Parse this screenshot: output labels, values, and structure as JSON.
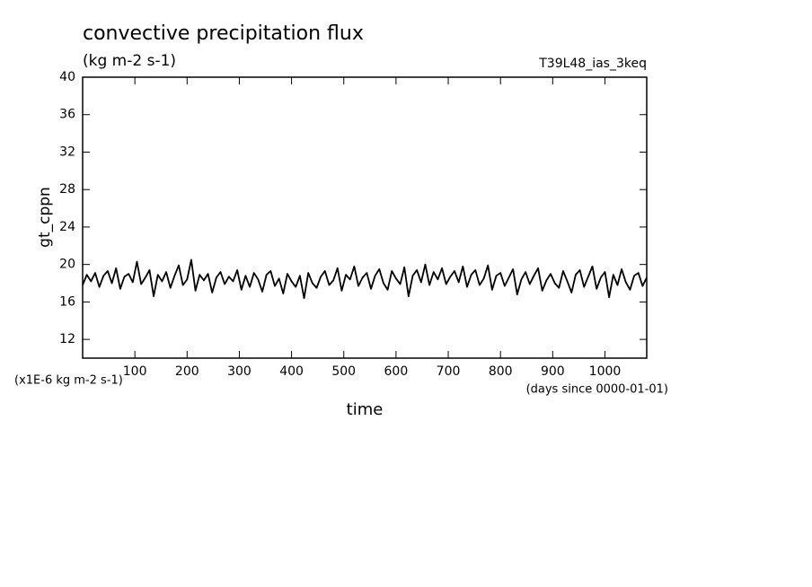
{
  "chart_data": {
    "type": "line",
    "title": "convective precipitation flux",
    "subtitle": "(kg m-2 s-1)",
    "annotation": "T39L48_ias_3keq",
    "y_label": "gt_cppn",
    "y_unit": "(x1E-6 kg m-2 s-1)",
    "x_label": "time",
    "x_unit": "(days since 0000-01-01)",
    "xlim": [
      0,
      1080
    ],
    "ylim": [
      10,
      40
    ],
    "xticks": [
      100,
      200,
      300,
      400,
      500,
      600,
      700,
      800,
      900,
      1000
    ],
    "yticks": [
      12,
      16,
      20,
      24,
      28,
      32,
      36,
      40
    ],
    "grid": false,
    "color": "#000000",
    "x": [
      0,
      8,
      16,
      24,
      32,
      40,
      48,
      56,
      64,
      72,
      80,
      88,
      96,
      104,
      112,
      120,
      128,
      136,
      144,
      152,
      160,
      168,
      176,
      184,
      192,
      200,
      208,
      216,
      224,
      232,
      240,
      248,
      256,
      264,
      272,
      280,
      288,
      296,
      304,
      312,
      320,
      328,
      336,
      344,
      352,
      360,
      368,
      376,
      384,
      392,
      400,
      408,
      416,
      424,
      432,
      440,
      448,
      456,
      464,
      472,
      480,
      488,
      496,
      504,
      512,
      520,
      528,
      536,
      544,
      552,
      560,
      568,
      576,
      584,
      592,
      600,
      608,
      616,
      624,
      632,
      640,
      648,
      656,
      664,
      672,
      680,
      688,
      696,
      704,
      712,
      720,
      728,
      736,
      744,
      752,
      760,
      768,
      776,
      784,
      792,
      800,
      808,
      816,
      824,
      832,
      840,
      848,
      856,
      864,
      872,
      880,
      888,
      896,
      904,
      912,
      920,
      928,
      936,
      944,
      952,
      960,
      968,
      976,
      984,
      992,
      1000,
      1008,
      1016,
      1024,
      1032,
      1040,
      1048,
      1056,
      1064,
      1072,
      1080
    ],
    "values": [
      17.8,
      18.9,
      18.2,
      19.1,
      17.6,
      18.8,
      19.3,
      18.0,
      19.6,
      17.4,
      18.7,
      19.0,
      18.1,
      20.3,
      17.9,
      18.6,
      19.4,
      16.6,
      18.9,
      18.2,
      19.2,
      17.5,
      18.8,
      19.9,
      17.8,
      18.4,
      20.5,
      17.2,
      18.9,
      18.3,
      19.0,
      17.0,
      18.6,
      19.2,
      17.9,
      18.7,
      18.2,
      19.4,
      17.3,
      18.8,
      17.6,
      19.1,
      18.4,
      17.1,
      18.9,
      19.3,
      17.7,
      18.5,
      16.9,
      19.0,
      18.2,
      17.6,
      18.8,
      16.4,
      19.1,
      18.0,
      17.5,
      18.7,
      19.3,
      17.8,
      18.3,
      19.6,
      17.2,
      18.9,
      18.4,
      19.8,
      17.7,
      18.6,
      19.1,
      17.4,
      18.8,
      19.5,
      18.0,
      17.3,
      19.3,
      18.5,
      17.9,
      19.7,
      16.6,
      18.8,
      19.4,
      18.1,
      20.0,
      17.8,
      19.2,
      18.4,
      19.6,
      17.9,
      18.7,
      19.3,
      18.1,
      19.8,
      17.6,
      18.9,
      19.4,
      17.8,
      18.5,
      19.9,
      17.3,
      18.8,
      19.1,
      17.7,
      18.6,
      19.5,
      16.8,
      18.4,
      19.2,
      17.9,
      18.8,
      19.6,
      17.2,
      18.3,
      19.0,
      18.0,
      17.5,
      19.3,
      18.2,
      17.0,
      18.9,
      19.4,
      17.6,
      18.7,
      19.8,
      17.4,
      18.6,
      19.2,
      16.5,
      18.9,
      17.8,
      19.5,
      18.1,
      17.3,
      18.8,
      19.1,
      17.7,
      18.6
    ]
  }
}
